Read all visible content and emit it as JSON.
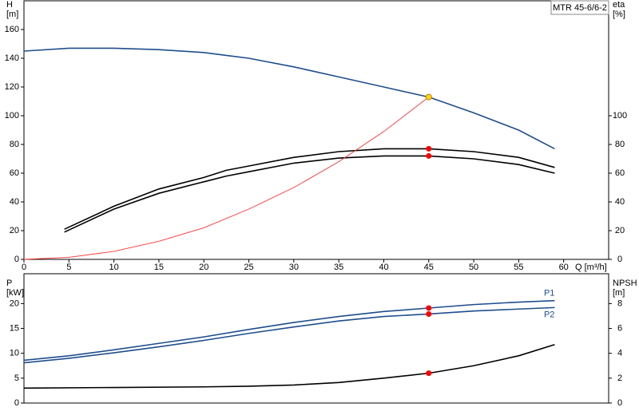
{
  "chart_data": [
    {
      "type": "line",
      "ylabel": "H",
      "yunit": "[m]",
      "y2label": "eta",
      "y2unit": "[%]",
      "xlabel": "Q [m³/h]",
      "legend_title": "MTR 45-6/6-2",
      "xlim": [
        0,
        65
      ],
      "xticks": [
        0,
        5,
        10,
        15,
        20,
        25,
        30,
        35,
        40,
        45,
        50,
        55,
        60
      ],
      "ylim": [
        0,
        180
      ],
      "yticks": [
        0,
        20,
        40,
        60,
        80,
        100,
        120,
        140,
        160
      ],
      "y2lim": [
        0,
        180
      ],
      "y2ticks": [
        0,
        20,
        40,
        60,
        80,
        100
      ],
      "series": [
        {
          "color": "#1f4e8c",
          "axis": "y",
          "x": [
            0,
            5,
            10,
            15,
            20,
            22.5,
            25,
            30,
            35,
            40,
            45,
            50,
            55,
            59
          ],
          "values": [
            145,
            147,
            147,
            146,
            144,
            142,
            140,
            134,
            127,
            120,
            113,
            102,
            90,
            77
          ]
        },
        {
          "color": "#000000",
          "axis": "y2",
          "x": [
            4.5,
            10,
            15,
            20,
            22.5,
            25,
            30,
            35,
            40,
            45,
            50,
            55,
            59
          ],
          "values": [
            21,
            37,
            49,
            57,
            62,
            65,
            71,
            75,
            77,
            77,
            75,
            71,
            64
          ]
        },
        {
          "color": "#000000",
          "axis": "y2",
          "x": [
            4.5,
            10,
            15,
            20,
            22.5,
            25,
            30,
            35,
            40,
            45,
            50,
            55,
            59
          ],
          "values": [
            19,
            35,
            46,
            54,
            58,
            61,
            67,
            70.5,
            72,
            72,
            70,
            66,
            60
          ]
        },
        {
          "color": "#ff3333",
          "axis": "y",
          "x": [
            0,
            5,
            10,
            15,
            20,
            25,
            30,
            35,
            40,
            45
          ],
          "values": [
            0,
            1.4,
            5.6,
            12.6,
            22,
            35,
            50,
            68,
            89,
            113
          ]
        }
      ],
      "markers": [
        {
          "x": 45,
          "y": 113,
          "color": "#ffd700",
          "axis": "y"
        },
        {
          "x": 45,
          "y": 77,
          "color": "#ff0000",
          "axis": "y2"
        },
        {
          "x": 45,
          "y": 72,
          "color": "#ff0000",
          "axis": "y2"
        }
      ]
    },
    {
      "type": "line",
      "ylabel": "P",
      "yunit": "[kW]",
      "y2label": "NPSH",
      "y2unit": "[m]",
      "xlim": [
        0,
        65
      ],
      "ylim": [
        0,
        26
      ],
      "yticks": [
        0,
        5,
        10,
        15,
        20
      ],
      "y2lim": [
        0,
        10.4
      ],
      "y2ticks": [
        0,
        2,
        4,
        6,
        8
      ],
      "series": [
        {
          "name": "P1",
          "color": "#1f4e8c",
          "axis": "y",
          "x": [
            0,
            5,
            10,
            15,
            20,
            25,
            30,
            35,
            40,
            45,
            50,
            55,
            59
          ],
          "values": [
            8.6,
            9.5,
            10.7,
            12,
            13.3,
            14.8,
            16.2,
            17.4,
            18.4,
            19.1,
            19.8,
            20.3,
            20.6
          ]
        },
        {
          "name": "P2",
          "color": "#1f4e8c",
          "axis": "y",
          "x": [
            0,
            5,
            10,
            15,
            20,
            25,
            30,
            35,
            40,
            45,
            50,
            55,
            59
          ],
          "values": [
            8.1,
            9.0,
            10.1,
            11.3,
            12.6,
            14,
            15.3,
            16.5,
            17.4,
            17.9,
            18.5,
            18.9,
            19.2
          ]
        },
        {
          "color": "#000000",
          "axis": "y2",
          "x": [
            0,
            10,
            20,
            25,
            30,
            35,
            40,
            45,
            50,
            55,
            59
          ],
          "values": [
            1.2,
            1.25,
            1.3,
            1.35,
            1.45,
            1.65,
            2.0,
            2.4,
            3.0,
            3.8,
            4.7
          ]
        }
      ],
      "markers": [
        {
          "x": 45,
          "y": 19.1,
          "color": "#ff0000",
          "axis": "y"
        },
        {
          "x": 45,
          "y": 17.9,
          "color": "#ff0000",
          "axis": "y"
        },
        {
          "x": 45,
          "y": 2.4,
          "color": "#ff0000",
          "axis": "y2"
        }
      ]
    }
  ]
}
